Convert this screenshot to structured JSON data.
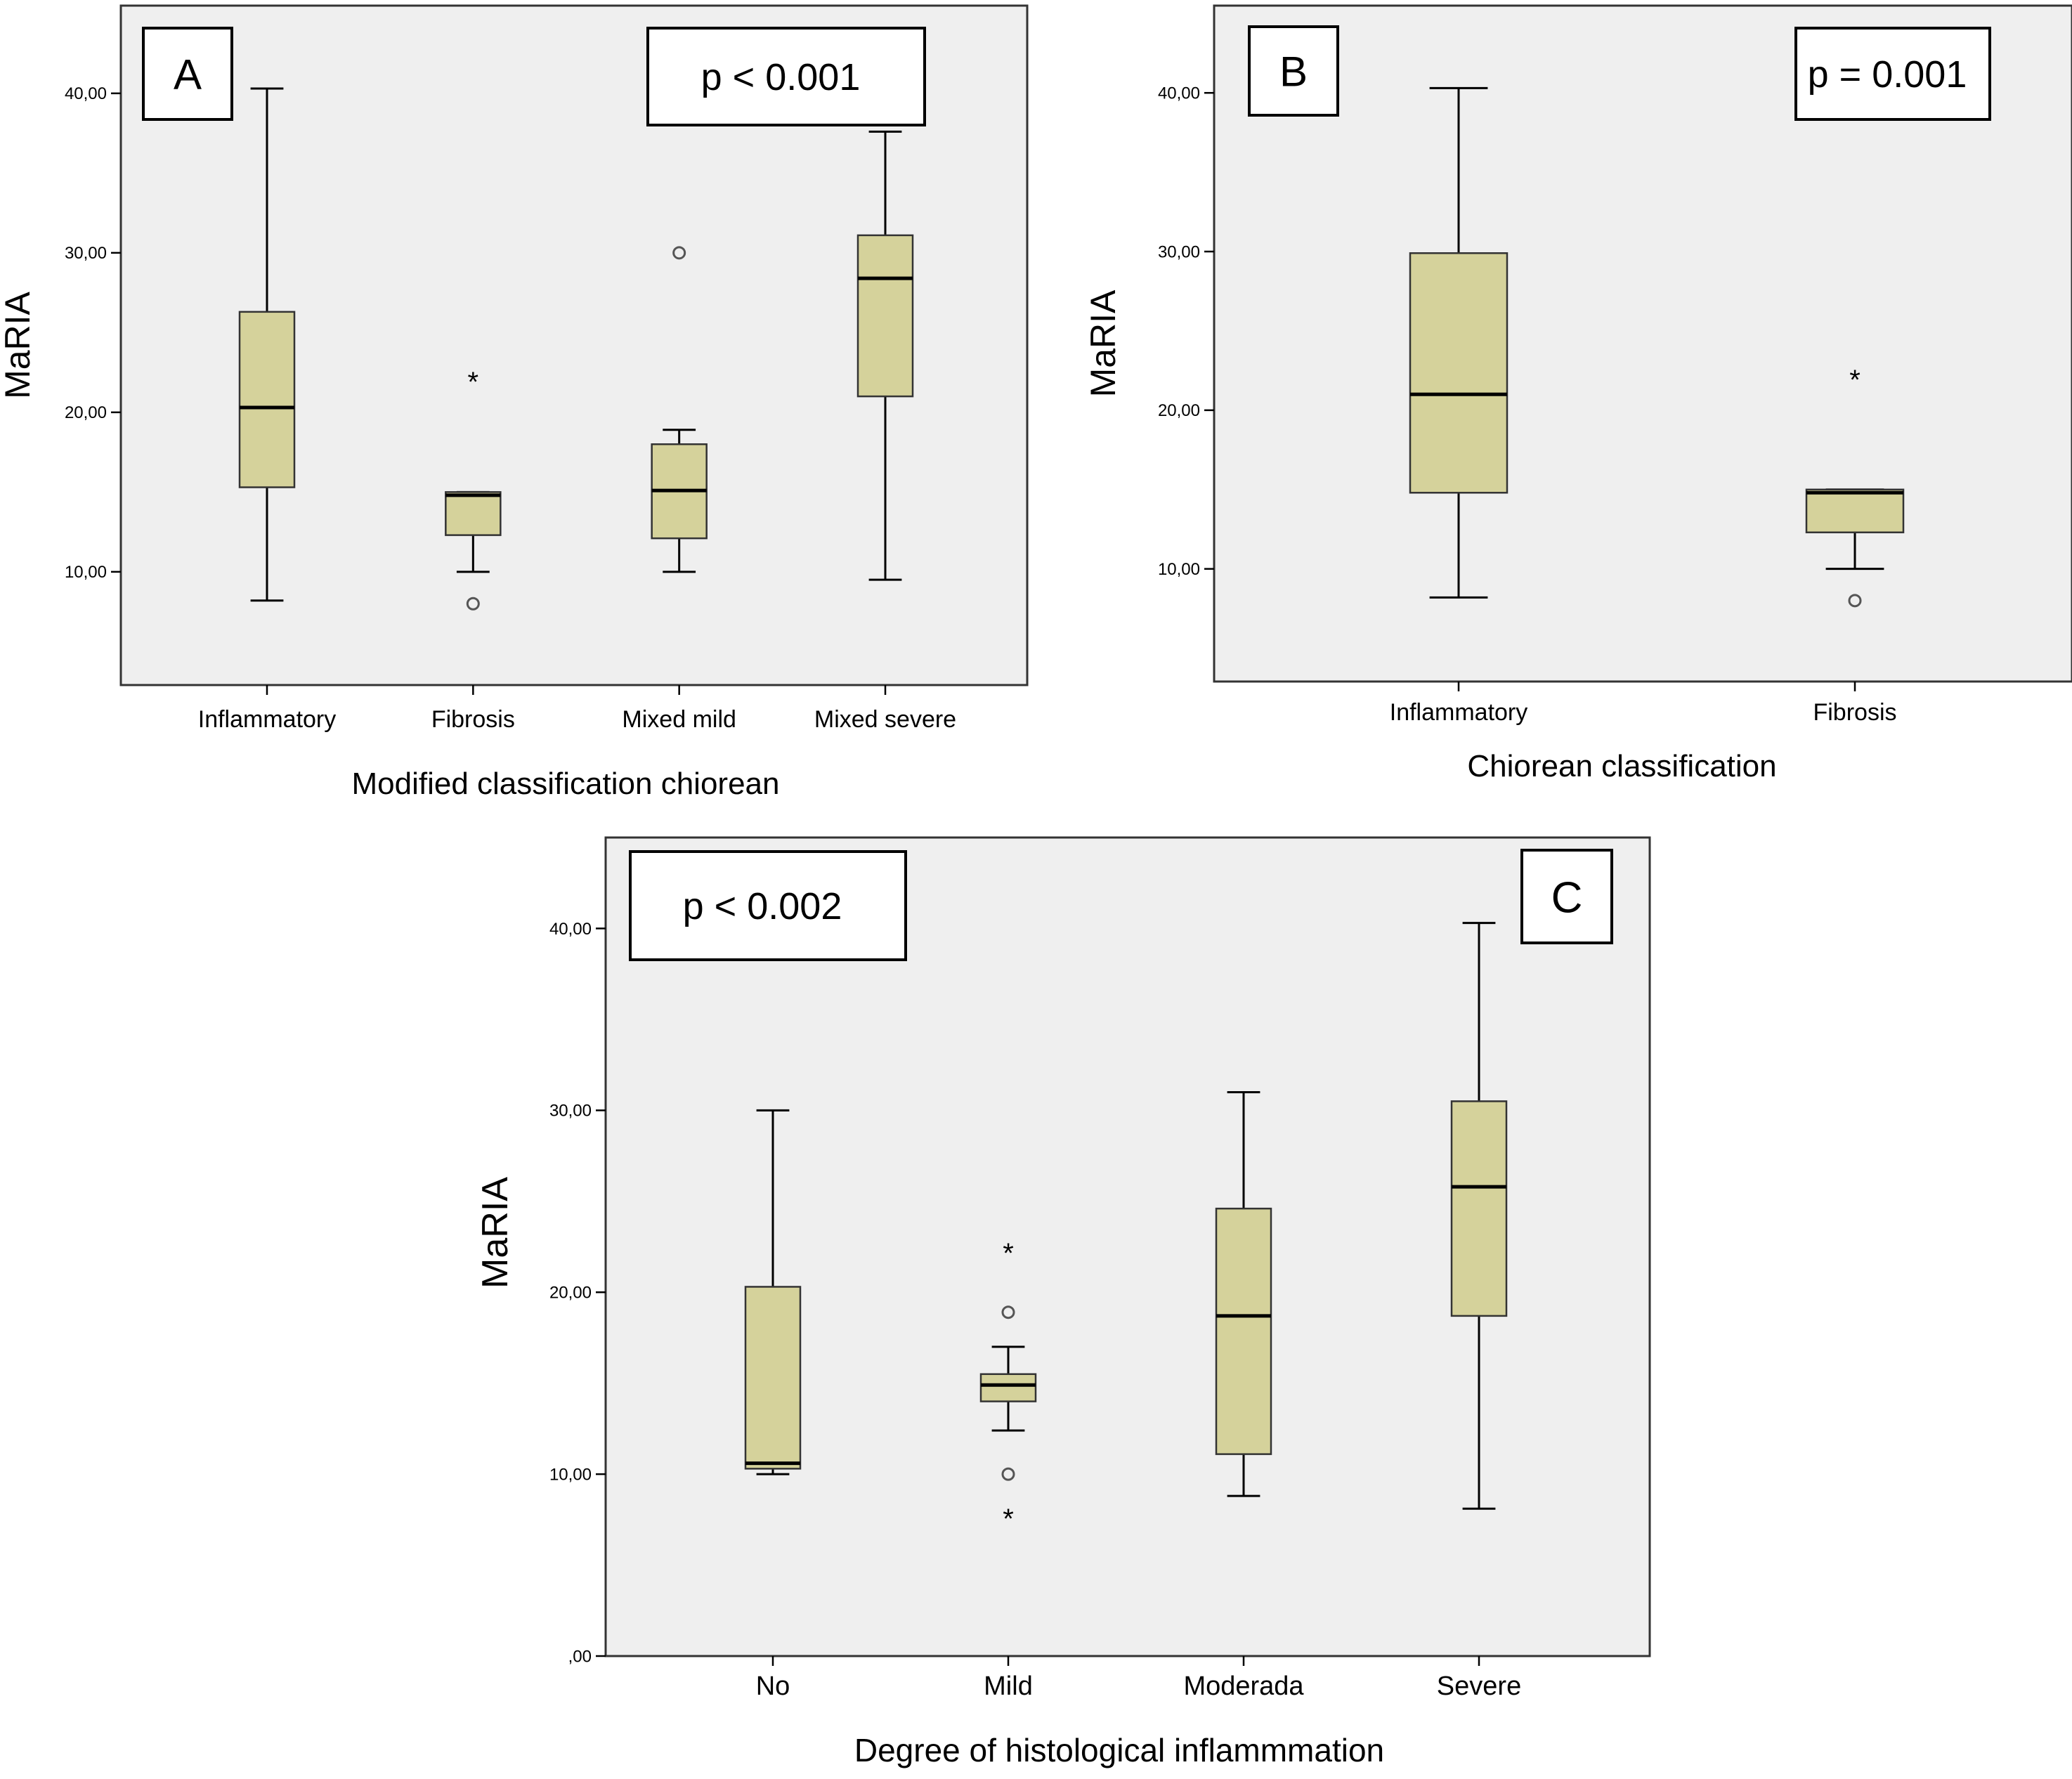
{
  "figure": {
    "panels": [
      "A",
      "B",
      "C"
    ]
  },
  "chart_data": [
    {
      "panel": "A",
      "type": "boxplot",
      "panel_label": "A",
      "p_value": "p < 0.001",
      "title": "",
      "xlabel": "Modified classification chiorean",
      "ylabel": "MaRIA",
      "ylim": [
        2.9,
        45.5
      ],
      "yticks": [
        10,
        20,
        30,
        40
      ],
      "ytick_labels": [
        "10,00",
        "20,00",
        "30,00",
        "40,00"
      ],
      "grid": false,
      "categories": [
        "Inflammatory",
        "Fibrosis",
        "Mixed mild",
        "Mixed severe"
      ],
      "boxes": [
        {
          "category": "Inflammatory",
          "whisker_low": 8.2,
          "q1": 15.3,
          "median": 20.3,
          "q3": 26.3,
          "whisker_high": 40.3,
          "outliers": [],
          "extremes": []
        },
        {
          "category": "Fibrosis",
          "whisker_low": 10.0,
          "q1": 12.3,
          "median": 14.8,
          "q3": 15.0,
          "whisker_high": 15.0,
          "outliers": [
            8.0
          ],
          "extremes": [
            22.2
          ]
        },
        {
          "category": "Mixed mild",
          "whisker_low": 10.0,
          "q1": 12.1,
          "median": 15.1,
          "q3": 18.0,
          "whisker_high": 18.9,
          "outliers": [
            30.0
          ],
          "extremes": []
        },
        {
          "category": "Mixed severe",
          "whisker_low": 9.5,
          "q1": 21.0,
          "median": 28.4,
          "q3": 31.1,
          "whisker_high": 37.6,
          "outliers": [],
          "extremes": []
        }
      ],
      "colors": {
        "box_fill": "#d5d29b",
        "plot_bg": "#efefef"
      }
    },
    {
      "panel": "B",
      "type": "boxplot",
      "panel_label": "B",
      "p_value": "p = 0.001",
      "title": "",
      "xlabel": "Chiorean classification",
      "ylabel": "MaRIA",
      "ylim": [
        2.9,
        45.5
      ],
      "yticks": [
        10,
        20,
        30,
        40
      ],
      "ytick_labels": [
        "10,00",
        "20,00",
        "30,00",
        "40,00"
      ],
      "grid": false,
      "categories": [
        "Inflammatory",
        "Fibrosis"
      ],
      "boxes": [
        {
          "category": "Inflammatory",
          "whisker_low": 8.2,
          "q1": 14.8,
          "median": 21.0,
          "q3": 29.9,
          "whisker_high": 40.3,
          "outliers": [],
          "extremes": []
        },
        {
          "category": "Fibrosis",
          "whisker_low": 10.0,
          "q1": 12.3,
          "median": 14.8,
          "q3": 15.0,
          "whisker_high": 15.0,
          "outliers": [
            8.0
          ],
          "extremes": [
            22.2
          ]
        }
      ],
      "colors": {
        "box_fill": "#d5d29b",
        "plot_bg": "#efefef"
      }
    },
    {
      "panel": "C",
      "type": "boxplot",
      "panel_label": "C",
      "p_value": "p < 0.002",
      "title": "",
      "xlabel": "Degree of histological inflammmation",
      "ylabel": "MaRIA",
      "ylim": [
        0,
        45
      ],
      "yticks": [
        0,
        10,
        20,
        30,
        40
      ],
      "ytick_labels": [
        ",00",
        "10,00",
        "20,00",
        "30,00",
        "40,00"
      ],
      "grid": false,
      "categories": [
        "No",
        "Mild",
        "Moderada",
        "Severe"
      ],
      "boxes": [
        {
          "category": "No",
          "whisker_low": 10.0,
          "q1": 10.3,
          "median": 10.6,
          "q3": 20.3,
          "whisker_high": 30.0,
          "outliers": [],
          "extremes": []
        },
        {
          "category": "Mild",
          "whisker_low": 12.4,
          "q1": 14.0,
          "median": 14.9,
          "q3": 15.5,
          "whisker_high": 17.0,
          "outliers": [
            18.9,
            10.0
          ],
          "extremes": [
            22.4,
            7.8
          ]
        },
        {
          "category": "Moderada",
          "whisker_low": 8.8,
          "q1": 11.1,
          "median": 18.7,
          "q3": 24.6,
          "whisker_high": 31.0,
          "outliers": [],
          "extremes": []
        },
        {
          "category": "Severe",
          "whisker_low": 8.1,
          "q1": 18.7,
          "median": 25.8,
          "q3": 30.5,
          "whisker_high": 40.3,
          "outliers": [],
          "extremes": []
        }
      ],
      "colors": {
        "box_fill": "#d5d29b",
        "plot_bg": "#efefef"
      }
    }
  ]
}
